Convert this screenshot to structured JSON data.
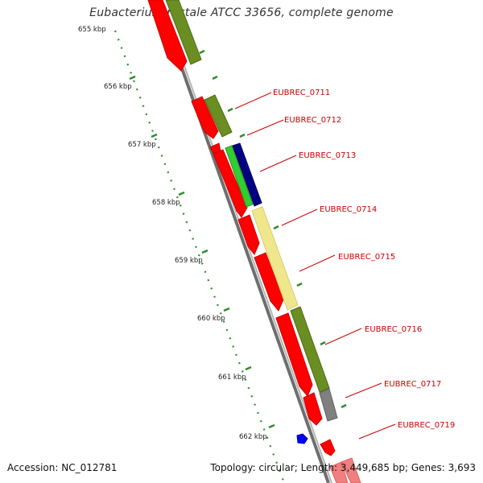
{
  "title": "Eubacterium rectale ATCC 33656, complete genome",
  "footer": {
    "accession": "Accession: NC_012781",
    "summary": "Topology: circular; Length: 3,449,685 bp; Genes: 3,693"
  },
  "ruler": {
    "labels": [
      "655 kbp",
      "656 kbp",
      "657 kbp",
      "658 kbp",
      "659 kbp",
      "660 kbp",
      "661 kbp",
      "662 kbp"
    ]
  },
  "genes": [
    {
      "label": "EUBREC_0711"
    },
    {
      "label": "EUBREC_0712"
    },
    {
      "label": "EUBREC_0713"
    },
    {
      "label": "EUBREC_0714"
    },
    {
      "label": "EUBREC_0715"
    },
    {
      "label": "EUBREC_0716"
    },
    {
      "label": "EUBREC_0717"
    },
    {
      "label": "EUBREC_0719"
    }
  ],
  "colors": {
    "cds_red": "#ff0000",
    "olive": "#6b8e23",
    "green": "#33cc33",
    "navy": "#000080",
    "khaki": "#f0e68c",
    "gray": "#808080",
    "blue": "#0000ff",
    "label_red": "#cc0000",
    "tick_green": "#008000"
  }
}
